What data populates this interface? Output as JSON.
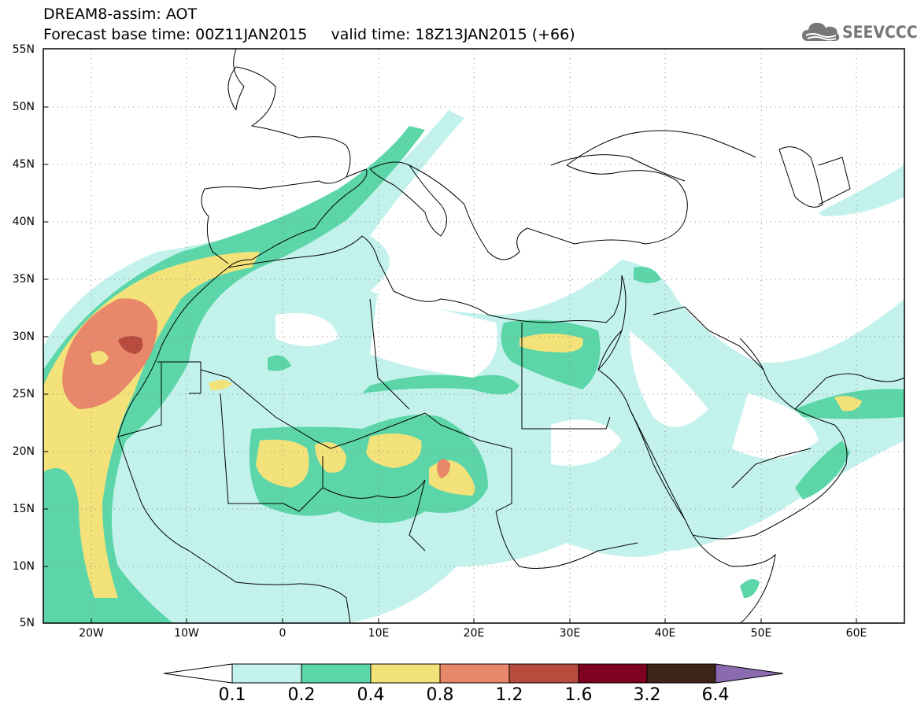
{
  "header": {
    "line1": "DREAM8-assim: AOT",
    "line2": "Forecast base time: 00Z11JAN2015     valid time: 18Z13JAN2015 (+66)"
  },
  "logo": {
    "text": "SEEVCCC",
    "icon": "cloud-icon"
  },
  "map": {
    "lat_labels": [
      "55N",
      "50N",
      "45N",
      "40N",
      "35N",
      "30N",
      "25N",
      "20N",
      "15N",
      "10N",
      "5N"
    ],
    "lon_labels": [
      "20W",
      "10W",
      "0",
      "10E",
      "20E",
      "30E",
      "40E",
      "50E",
      "60E"
    ],
    "lat_range": [
      5,
      55
    ],
    "lon_range": [
      -25,
      65
    ],
    "grid": "dotted"
  },
  "colorbar": {
    "labels": [
      "0.1",
      "0.2",
      "0.4",
      "0.8",
      "1.2",
      "1.6",
      "3.2",
      "6.4"
    ],
    "colors": [
      "#c3f2ec",
      "#5cd6a8",
      "#f3e27a",
      "#e8876a",
      "#b74c3e",
      "#800020",
      "#3d2617",
      "#8a6bb0"
    ]
  },
  "colors": {
    "c1": "#c3f2ec",
    "c2": "#5cd6a8",
    "c3": "#f3e27a",
    "c4": "#e8876a",
    "c5": "#b74c3e"
  }
}
